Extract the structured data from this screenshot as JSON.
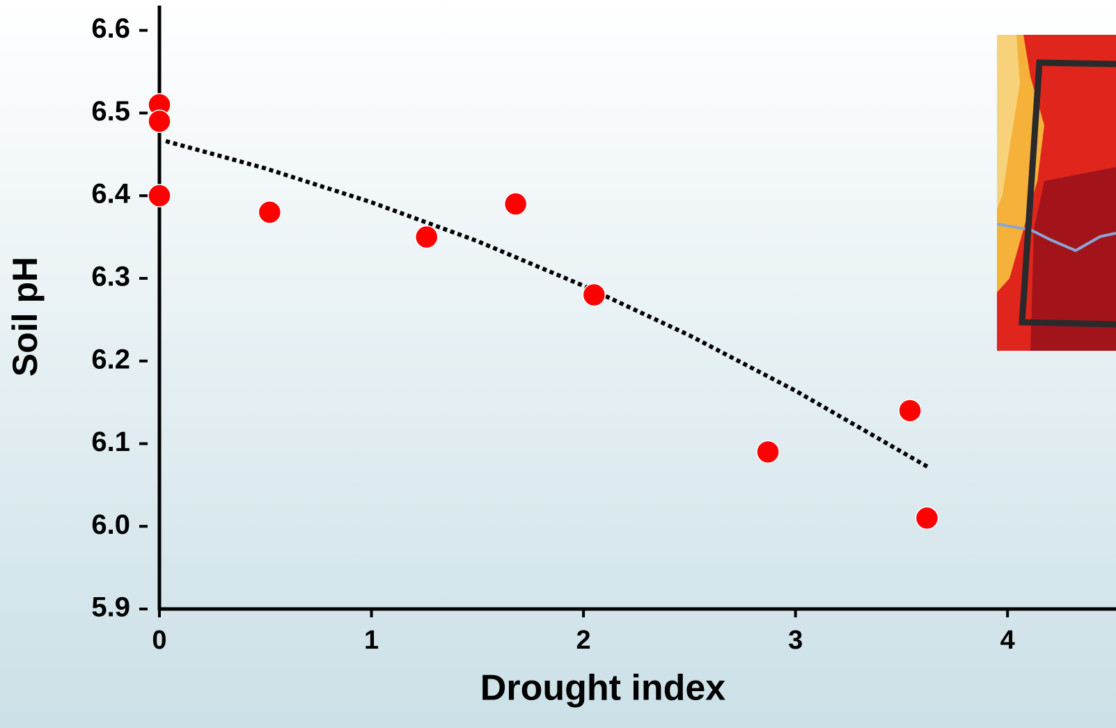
{
  "chart_data": {
    "type": "scatter",
    "x_label": "Drought index",
    "y_label": "Soil pH",
    "xlim": [
      0,
      4.4
    ],
    "ylim": [
      5.9,
      6.63
    ],
    "xticks": [
      0,
      1,
      2,
      3,
      4
    ],
    "yticks": [
      5.9,
      {
        "value": 6,
        "label": "6.0"
      },
      6.1,
      6.2,
      6.3,
      6.4,
      6.5,
      6.6
    ],
    "points": {
      "color": "#ff0000",
      "x": [
        0.0,
        0.0,
        0.0,
        0.52,
        1.26,
        1.68,
        2.05,
        2.87,
        3.54,
        3.62
      ],
      "y": [
        6.51,
        6.49,
        6.4,
        6.38,
        6.35,
        6.39,
        6.28,
        6.09,
        6.14,
        6.01
      ]
    },
    "trendline": {
      "color": "#000000",
      "x": [
        0.03,
        0.5,
        1,
        1.5,
        2,
        2.5,
        3,
        3.63
      ],
      "y": [
        6.466,
        6.433,
        6.392,
        6.345,
        6.291,
        6.231,
        6.164,
        6.071
      ]
    }
  }
}
